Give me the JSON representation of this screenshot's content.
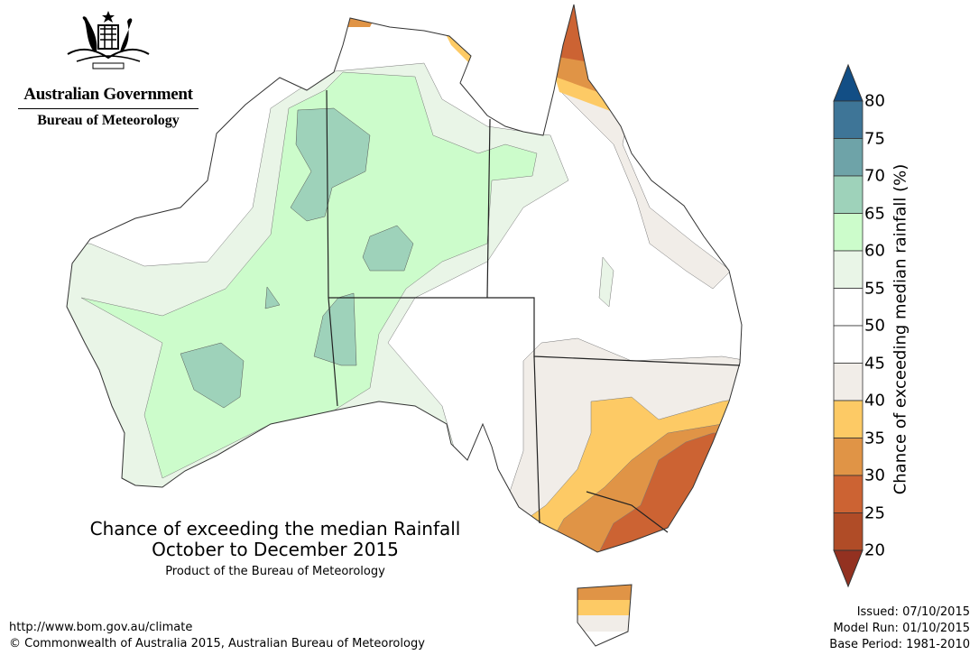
{
  "logo": {
    "government": "Australian Government",
    "agency": "Bureau of Meteorology"
  },
  "title": {
    "line1": "Chance of exceeding the median Rainfall",
    "line2": "October to December 2015",
    "product": "Product of the Bureau of Meteorology"
  },
  "footer": {
    "url": "http://www.bom.gov.au/climate",
    "copyright": "© Commonwealth of Australia 2015, Australian Bureau of Meteorology"
  },
  "issue_info": {
    "issued": "Issued: 07/10/2015",
    "model_run": "Model Run: 01/10/2015",
    "base_period": "Base Period: 1981-2010"
  },
  "colorbar": {
    "label": "Chance of exceeding median rainfall (%)",
    "ticks": [
      "80",
      "75",
      "70",
      "65",
      "60",
      "55",
      "50",
      "45",
      "40",
      "35",
      "30",
      "25",
      "20"
    ],
    "colors": {
      "above80": "#124e85",
      "75-80": "#3e7597",
      "70-75": "#6ea3a8",
      "65-70": "#9ed2ba",
      "60-65": "#ccfccb",
      "55-60": "#e9f5e7",
      "50-55": "#ffffff",
      "45-50": "#ffffff",
      "40-45": "#f1ede8",
      "35-40": "#fdca65",
      "30-35": "#e09446",
      "25-30": "#cc6333",
      "20-25": "#b04c27",
      "below20": "#933120"
    }
  }
}
